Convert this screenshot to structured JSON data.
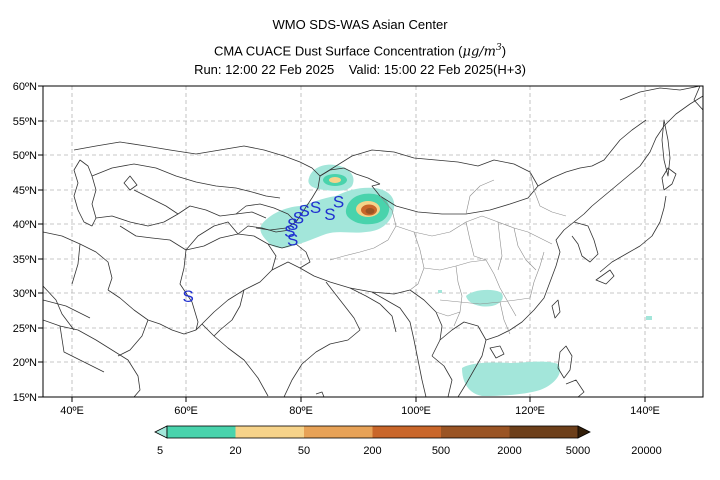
{
  "header": {
    "line1": "WMO SDS-WAS Asian Center",
    "line2_prefix": "CMA CUACE Dust Surface Concentration (",
    "line2_mu": "μ",
    "line2_unit": "g/m",
    "line2_sup": "3",
    "line2_suffix": ")",
    "line3": "Run: 12:00 22 Feb 2025    Valid: 15:00 22 Feb 2025(H+3)"
  },
  "map": {
    "lon_range": [
      35,
      150
    ],
    "lat_range": [
      15,
      60
    ],
    "lat_ticks": [
      "15ºN",
      "20ºN",
      "25ºN",
      "30ºN",
      "35ºN",
      "40ºN",
      "45ºN",
      "50ºN",
      "55ºN",
      "60ºN"
    ],
    "lon_ticks": [
      "40ºE",
      "60ºE",
      "80ºE",
      "100ºE",
      "120ºE",
      "140ºE"
    ],
    "grid": "dashed",
    "dust_storm_symbol": "S",
    "dust_storm_color": "#1f2fd0",
    "storm_sites": [
      {
        "lon": 86.5,
        "lat": 43.3
      },
      {
        "lon": 85.0,
        "lat": 41.5
      },
      {
        "lon": 82.5,
        "lat": 42.5
      },
      {
        "lon": 80.5,
        "lat": 42.0
      },
      {
        "lon": 79.5,
        "lat": 41.0
      },
      {
        "lon": 78.5,
        "lat": 40.0
      },
      {
        "lon": 78.0,
        "lat": 39.0
      },
      {
        "lon": 78.5,
        "lat": 37.8
      },
      {
        "lon": 60.3,
        "lat": 29.6
      }
    ]
  },
  "colorbar": {
    "labels": [
      "5",
      "20",
      "50",
      "200",
      "500",
      "2000",
      "5000",
      "20000"
    ],
    "colors": [
      "#a3e6da",
      "#49d3ac",
      "#f6d38a",
      "#e7a257",
      "#c9662a",
      "#9a5424",
      "#6d3f1a",
      "#321e09"
    ]
  }
}
